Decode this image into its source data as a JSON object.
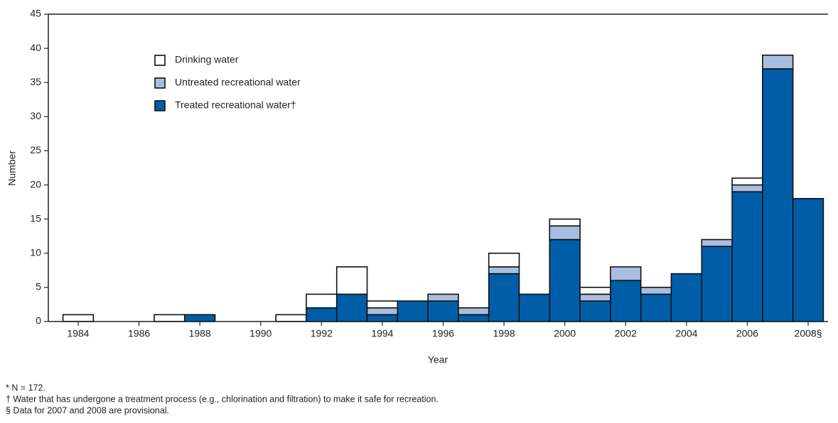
{
  "chart_data": {
    "type": "stacked-bar",
    "x_label": "Year",
    "y_label": "Number",
    "categories": [
      "1984",
      null,
      "1986",
      null,
      "1988",
      null,
      "1990",
      null,
      "1992",
      null,
      "1994",
      null,
      "1996",
      null,
      "1998",
      null,
      "2000",
      null,
      "2002",
      null,
      "2004",
      null,
      "2006",
      null,
      "2008§"
    ],
    "series": [
      {
        "name": "Treated recreational water†",
        "color": "#005ea8",
        "values": [
          0,
          0,
          0,
          0,
          1,
          0,
          0,
          0,
          2,
          4,
          1,
          3,
          3,
          1,
          7,
          4,
          12,
          3,
          6,
          4,
          7,
          11,
          19,
          37,
          18
        ]
      },
      {
        "name": "Untreated recreational water",
        "color": "#a9bde0",
        "values": [
          0,
          0,
          0,
          0,
          0,
          0,
          0,
          0,
          0,
          0,
          1,
          0,
          1,
          1,
          1,
          0,
          2,
          1,
          2,
          1,
          0,
          1,
          1,
          2,
          0
        ]
      },
      {
        "name": "Drinking water",
        "color": "#ffffff",
        "values": [
          1,
          0,
          0,
          1,
          0,
          0,
          0,
          1,
          2,
          4,
          1,
          0,
          0,
          0,
          2,
          0,
          1,
          1,
          0,
          0,
          0,
          0,
          1,
          0,
          0
        ]
      }
    ],
    "ylim": [
      0,
      45
    ],
    "yticks": [
      0,
      5,
      10,
      15,
      20,
      25,
      30,
      35,
      40,
      45
    ],
    "legend": "upper-left",
    "footnotes": [
      "* N = 172.",
      "† Water that has undergone a treatment process (e.g., chlorination and filtration) to make it safe for recreation.",
      "§ Data for 2007 and 2008 are provisional."
    ]
  }
}
